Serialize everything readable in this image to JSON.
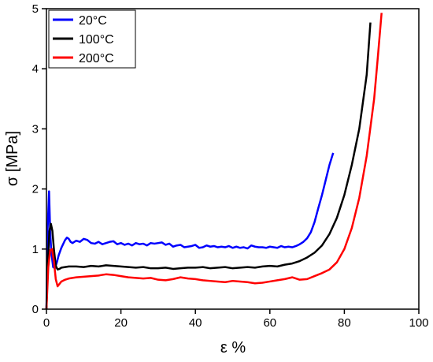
{
  "chart_data": {
    "type": "line",
    "xlabel": "ε %",
    "ylabel": "σ [MPa]",
    "xlim": [
      0,
      100
    ],
    "ylim": [
      0,
      5
    ],
    "xticks": [
      "0",
      "20",
      "40",
      "60",
      "80",
      "100"
    ],
    "yticks": [
      "0",
      "1",
      "2",
      "3",
      "4",
      "5"
    ],
    "legend_position": "top-left",
    "grid": false,
    "series": [
      {
        "name": "20°C",
        "color": "#0000ff",
        "x": [
          0,
          0.3,
          0.7,
          1.0,
          1.3,
          1.8,
          2.3,
          2.8,
          3.3,
          4.0,
          5.0,
          5.5,
          6.0,
          6.5,
          7.0,
          8.0,
          9.0,
          10.0,
          11.0,
          12.0,
          13.0,
          14.0,
          15.0,
          16.0,
          17.0,
          18.0,
          19.0,
          20.0,
          21.0,
          22.0,
          23.0,
          24.0,
          25.0,
          26.0,
          27.0,
          28.0,
          29.0,
          30.0,
          31.0,
          32.0,
          33.0,
          34.0,
          35.0,
          36.0,
          37.0,
          38.0,
          39.0,
          40.0,
          41.0,
          42.0,
          43.0,
          44.0,
          45.0,
          46.0,
          47.0,
          48.0,
          49.0,
          50.0,
          51.0,
          52.0,
          53.0,
          54.0,
          55.0,
          56.0,
          57.0,
          58.0,
          59.0,
          60.0,
          61.0,
          62.0,
          63.0,
          64.0,
          65.0,
          66.0,
          67.0,
          68.0,
          69.0,
          70.0,
          71.0,
          72.0,
          73.0,
          74.0,
          75.0,
          76.0,
          77.0
        ],
        "y": [
          0.0,
          1.3,
          1.96,
          1.3,
          0.95,
          0.7,
          0.68,
          0.78,
          0.9,
          1.02,
          1.15,
          1.19,
          1.17,
          1.12,
          1.1,
          1.14,
          1.12,
          1.17,
          1.15,
          1.1,
          1.09,
          1.12,
          1.08,
          1.1,
          1.12,
          1.13,
          1.08,
          1.1,
          1.07,
          1.09,
          1.06,
          1.1,
          1.08,
          1.09,
          1.06,
          1.1,
          1.09,
          1.1,
          1.11,
          1.07,
          1.09,
          1.04,
          1.06,
          1.07,
          1.03,
          1.04,
          1.05,
          1.07,
          1.02,
          1.03,
          1.06,
          1.04,
          1.05,
          1.03,
          1.04,
          1.03,
          1.05,
          1.02,
          1.04,
          1.02,
          1.03,
          1.01,
          1.06,
          1.04,
          1.03,
          1.03,
          1.02,
          1.04,
          1.03,
          1.02,
          1.05,
          1.03,
          1.04,
          1.03,
          1.05,
          1.08,
          1.12,
          1.18,
          1.28,
          1.45,
          1.68,
          1.9,
          2.15,
          2.4,
          2.6
        ]
      },
      {
        "name": "100°C",
        "color": "#000000",
        "x": [
          0,
          0.4,
          0.8,
          1.2,
          1.6,
          2.0,
          2.5,
          3.0,
          3.5,
          4.0,
          5.0,
          6.0,
          8.0,
          10.0,
          12.0,
          14.0,
          16.0,
          18.0,
          20.0,
          22.0,
          24.0,
          26.0,
          28.0,
          30.0,
          32.0,
          34.0,
          36.0,
          38.0,
          40.0,
          42.0,
          44.0,
          46.0,
          48.0,
          50.0,
          52.0,
          54.0,
          56.0,
          58.0,
          60.0,
          62.0,
          64.0,
          66.0,
          68.0,
          70.0,
          72.0,
          74.0,
          76.0,
          78.0,
          80.0,
          82.0,
          84.0,
          86.0,
          87.0
        ],
        "y": [
          0.0,
          0.8,
          1.3,
          1.42,
          1.3,
          1.0,
          0.72,
          0.66,
          0.67,
          0.69,
          0.7,
          0.71,
          0.71,
          0.7,
          0.72,
          0.71,
          0.73,
          0.72,
          0.71,
          0.7,
          0.69,
          0.7,
          0.68,
          0.68,
          0.69,
          0.67,
          0.68,
          0.69,
          0.69,
          0.7,
          0.68,
          0.69,
          0.7,
          0.68,
          0.69,
          0.7,
          0.69,
          0.71,
          0.72,
          0.71,
          0.74,
          0.76,
          0.8,
          0.86,
          0.94,
          1.06,
          1.25,
          1.52,
          1.9,
          2.4,
          3.0,
          3.9,
          4.77
        ]
      },
      {
        "name": "200°C",
        "color": "#ff0000",
        "x": [
          0,
          0.5,
          1.0,
          1.5,
          2.0,
          2.5,
          3.0,
          3.5,
          4.0,
          5.0,
          6.0,
          8.0,
          10.0,
          12.0,
          14.0,
          16.0,
          18.0,
          20.0,
          22.0,
          24.0,
          26.0,
          28.0,
          30.0,
          32.0,
          34.0,
          36.0,
          38.0,
          40.0,
          42.0,
          44.0,
          46.0,
          48.0,
          50.0,
          52.0,
          54.0,
          56.0,
          58.0,
          60.0,
          62.0,
          64.0,
          66.0,
          68.0,
          70.0,
          72.0,
          74.0,
          76.0,
          78.0,
          80.0,
          82.0,
          84.0,
          86.0,
          88.0,
          89.0,
          90.0
        ],
        "y": [
          0.0,
          0.7,
          0.98,
          1.0,
          0.8,
          0.5,
          0.38,
          0.42,
          0.46,
          0.49,
          0.51,
          0.53,
          0.54,
          0.55,
          0.56,
          0.58,
          0.57,
          0.55,
          0.53,
          0.52,
          0.51,
          0.52,
          0.49,
          0.48,
          0.5,
          0.53,
          0.51,
          0.5,
          0.48,
          0.47,
          0.46,
          0.45,
          0.47,
          0.46,
          0.45,
          0.43,
          0.44,
          0.46,
          0.48,
          0.5,
          0.53,
          0.49,
          0.5,
          0.55,
          0.6,
          0.66,
          0.78,
          1.0,
          1.35,
          1.85,
          2.55,
          3.5,
          4.2,
          4.93
        ]
      }
    ]
  }
}
